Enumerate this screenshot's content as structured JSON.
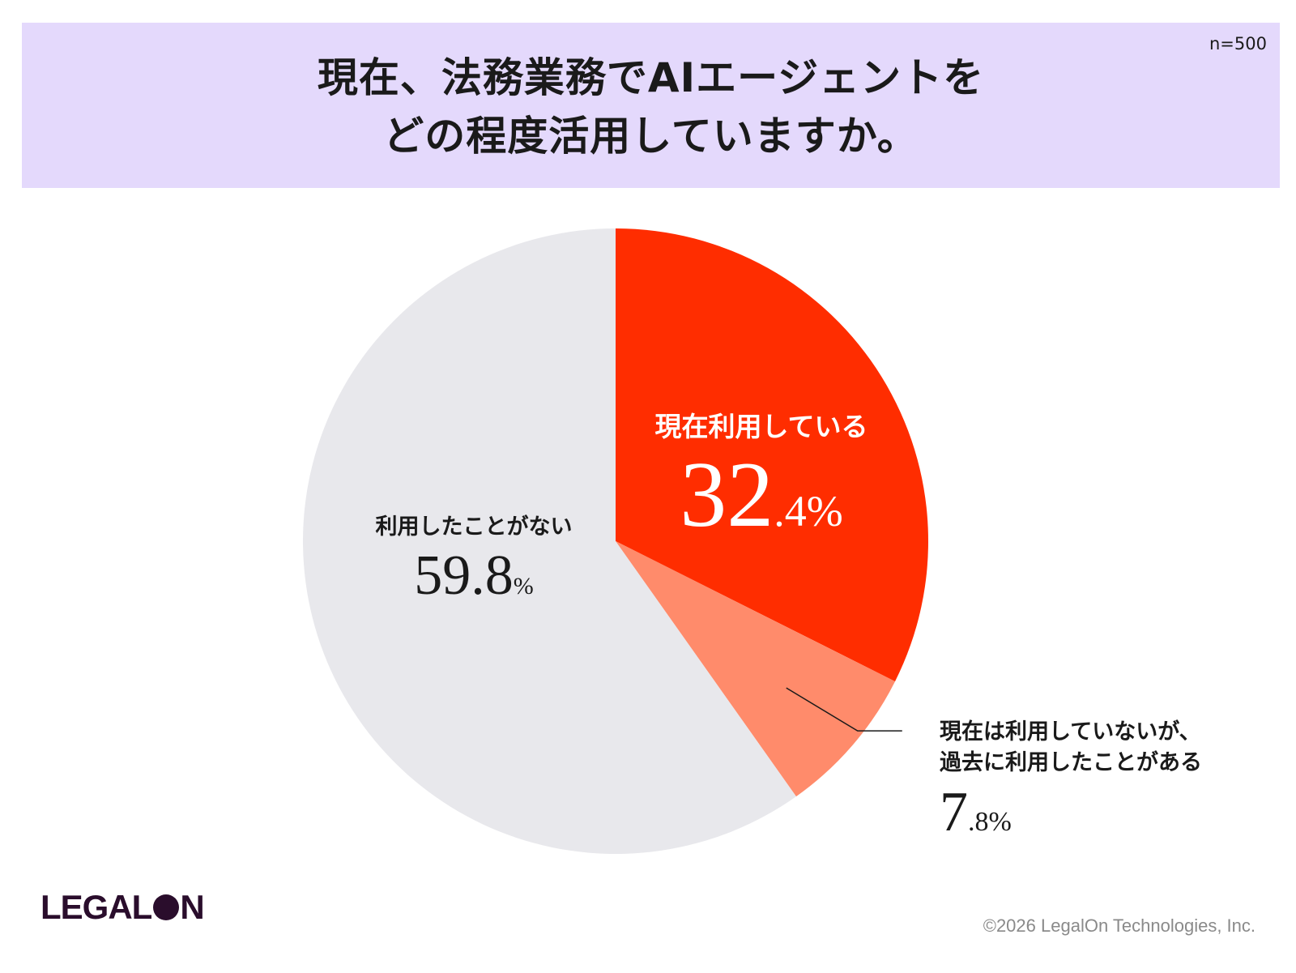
{
  "header": {
    "title_line1": "現在、法務業務でAIエージェントを",
    "title_line2": "どの程度活用していますか。",
    "sample_size": "n=500"
  },
  "colors": {
    "title_band": "#e4d9fc",
    "current": "#ff2d00",
    "past": "#ff8b6b",
    "never": "#e8e8ec"
  },
  "chart_data": {
    "type": "pie",
    "title": "現在、法務業務でAIエージェントをどの程度活用していますか。",
    "n": 500,
    "unit": "%",
    "slices": [
      {
        "key": "current",
        "label": "現在利用している",
        "value": 32.4,
        "int": "32",
        "dec": ".4%"
      },
      {
        "key": "past",
        "label_line1": "現在は利用していないが、",
        "label_line2": "過去に利用したことがある",
        "value": 7.8,
        "int": "7",
        "dec": ".8%"
      },
      {
        "key": "never",
        "label": "利用したことがない",
        "value": 59.8,
        "int": "59.8",
        "dec": "%"
      }
    ],
    "start_angle": "12 o'clock",
    "direction": "clockwise"
  },
  "footer": {
    "logo_left": "LEGAL",
    "logo_right": "N",
    "copyright": "©2026 LegalOn Technologies, Inc."
  }
}
